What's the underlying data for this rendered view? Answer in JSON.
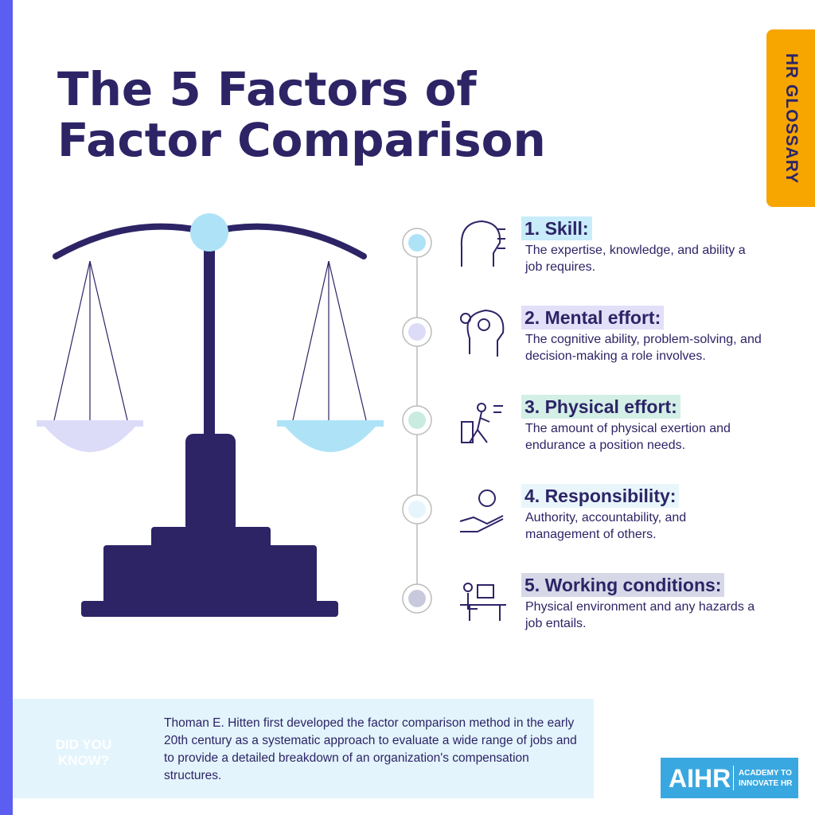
{
  "header": {
    "title_lines": [
      "The 5 Factors of",
      "Factor Comparison"
    ],
    "badge": "HR GLOSSARY"
  },
  "factors": [
    {
      "heading": "1. Skill:",
      "description": "The expertise, knowledge, and ability a job requires."
    },
    {
      "heading": "2. Mental effort:",
      "description": "The cognitive ability, problem-solving, and decision-making a role involves."
    },
    {
      "heading": "3. Physical effort:",
      "description": "The amount of physical exertion and endurance a position needs."
    },
    {
      "heading": "4. Responsibility:",
      "description": "Authority, accountability, and management of others."
    },
    {
      "heading": "5. Working conditions:",
      "description": "Physical environment and any hazards a job entails."
    }
  ],
  "did_you_know": {
    "label_lines": [
      "DID YOU",
      "KNOW?"
    ],
    "text": "Thoman E. Hitten first developed the factor comparison method in the early 20th century as a systematic approach to evaluate a wide range of jobs and to provide a detailed breakdown of an organization's compensation structures."
  },
  "logo": {
    "name": "AIHR",
    "tagline_lines": [
      "ACADEMY TO",
      "INNOVATE HR"
    ]
  }
}
